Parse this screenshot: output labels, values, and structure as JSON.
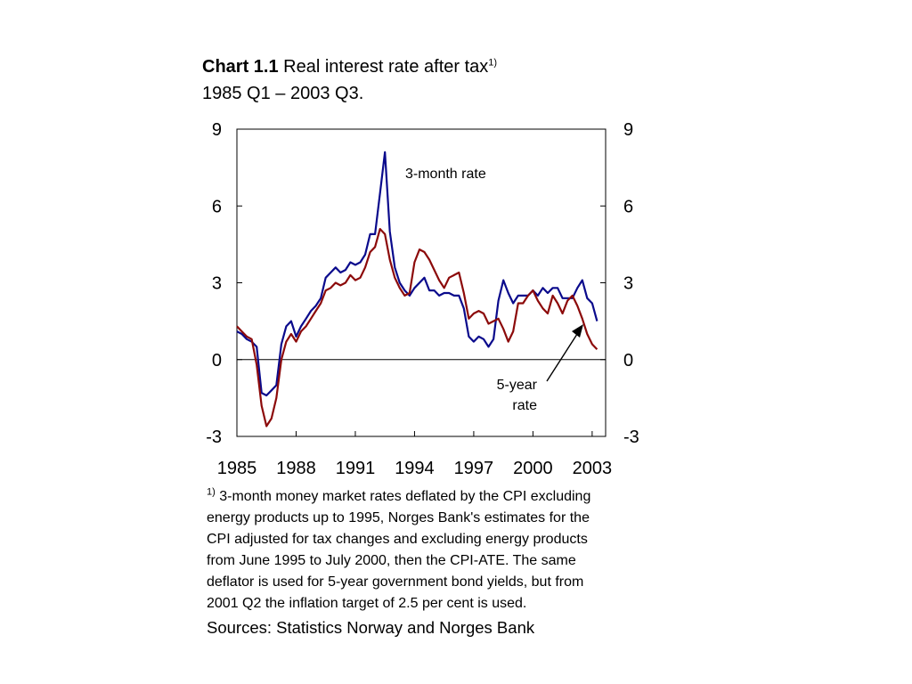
{
  "title": {
    "label": "Chart 1.1",
    "text": "Real interest rate after tax",
    "superscript": "1)",
    "subtitle": "1985 Q1 –  2003 Q3."
  },
  "footnote": {
    "marker": "1)",
    "text": "3-month money market rates deflated by the CPI excluding energy products up to 1995, Norges Bank's estimates for the CPI adjusted for tax changes and excluding energy products from June 1995 to July 2000, then the CPI-ATE. The same deflator is used for 5-year government bond yields, but from 2001 Q2 the inflation target of 2.5 per cent is used."
  },
  "source": "Sources: Statistics Norway and Norges Bank",
  "colors": {
    "three_month": "#0a0a8c",
    "five_year": "#8c0a0a"
  },
  "chart_data": {
    "type": "line",
    "ylim": [
      -3,
      9
    ],
    "y_ticks": [
      "9",
      "6",
      "3",
      "0",
      "-3"
    ],
    "x_ticks": [
      "1985",
      "1988",
      "1991",
      "1994",
      "1997",
      "2000",
      "2003"
    ],
    "start": "1985 Q1",
    "annotations": [
      "3-month rate",
      "5-year",
      "rate"
    ],
    "series": [
      {
        "name": "3-month rate",
        "values": [
          1.1,
          1.0,
          0.8,
          0.7,
          0.5,
          -1.3,
          -1.4,
          -1.2,
          -1.0,
          0.6,
          1.3,
          1.5,
          0.9,
          1.3,
          1.6,
          1.9,
          2.1,
          2.4,
          3.2,
          3.4,
          3.6,
          3.4,
          3.5,
          3.8,
          3.7,
          3.8,
          4.1,
          4.9,
          4.9,
          6.5,
          8.1,
          5.0,
          3.6,
          3.0,
          2.7,
          2.5,
          2.8,
          3.0,
          3.2,
          2.7,
          2.7,
          2.5,
          2.6,
          2.6,
          2.5,
          2.5,
          2.0,
          0.9,
          0.7,
          0.9,
          0.8,
          0.5,
          0.8,
          2.3,
          3.1,
          2.6,
          2.2,
          2.5,
          2.5,
          2.5,
          2.7,
          2.5,
          2.8,
          2.6,
          2.8,
          2.8,
          2.4,
          2.4,
          2.4,
          2.8,
          3.1,
          2.4,
          2.2,
          1.5
        ]
      },
      {
        "name": "5-year rate",
        "values": [
          1.3,
          1.1,
          0.9,
          0.8,
          -0.2,
          -1.8,
          -2.6,
          -2.3,
          -1.5,
          0.0,
          0.7,
          1.0,
          0.7,
          1.1,
          1.3,
          1.6,
          1.9,
          2.2,
          2.7,
          2.8,
          3.0,
          2.9,
          3.0,
          3.3,
          3.1,
          3.2,
          3.6,
          4.2,
          4.4,
          5.1,
          4.9,
          3.9,
          3.2,
          2.8,
          2.5,
          2.6,
          3.8,
          4.3,
          4.2,
          3.9,
          3.5,
          3.1,
          2.8,
          3.2,
          3.3,
          3.4,
          2.6,
          1.6,
          1.8,
          1.9,
          1.8,
          1.4,
          1.5,
          1.6,
          1.2,
          0.7,
          1.1,
          2.2,
          2.2,
          2.5,
          2.7,
          2.3,
          2.0,
          1.8,
          2.5,
          2.2,
          1.8,
          2.3,
          2.5,
          2.1,
          1.6,
          1.0,
          0.6,
          0.4
        ]
      }
    ]
  }
}
